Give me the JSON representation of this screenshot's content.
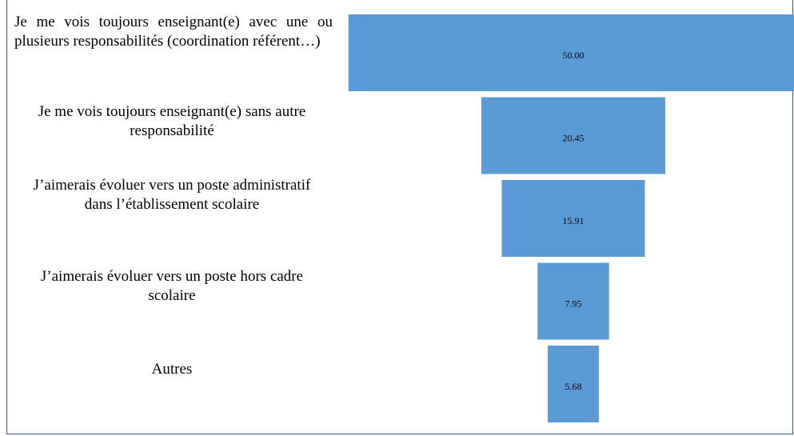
{
  "chart_data": {
    "type": "funnel",
    "categories": [
      "Je me vois toujours enseignant(e) avec une ou plusieurs responsabilités (coordination référent…)",
      "Je me vois toujours enseignant(e) sans autre responsabilité",
      "J’aimerais évoluer vers un poste administratif dans l’établissement scolaire",
      "J’aimerais évoluer vers un poste hors cadre scolaire",
      "Autres"
    ],
    "values": [
      50,
      20.45,
      15.91,
      7.95,
      5.68
    ],
    "value_labels": [
      "50.00",
      "20.45",
      "15.91",
      "7.95",
      "5.68"
    ],
    "color": "#5b9bd5"
  }
}
